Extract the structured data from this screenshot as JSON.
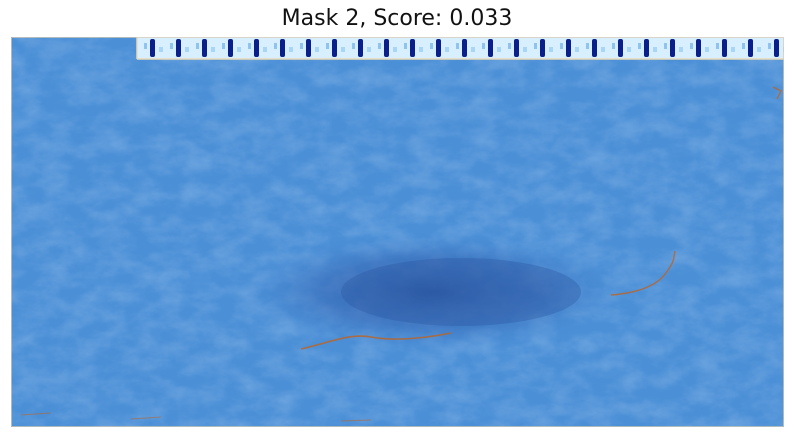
{
  "title": "Mask 2, Score: 0.033",
  "image": {
    "description_icon": "masked-photo",
    "mask_color": "#4a8fd8",
    "shadow_color": "#2f5fae",
    "stripe_highlight_color": "#cfe9ff",
    "stripe_dark_color": "#0b1f8a",
    "rust_color": "#b8652b"
  }
}
